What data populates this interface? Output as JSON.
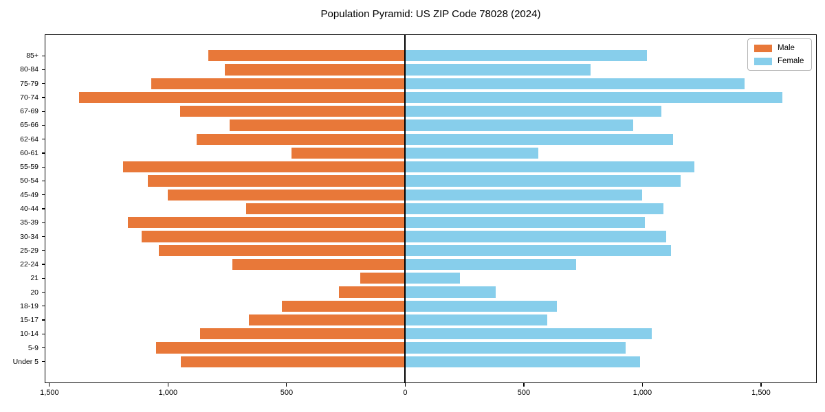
{
  "title": "Population Pyramid: US ZIP Code 78028 (2024)",
  "legend": {
    "male_label": "Male",
    "female_label": "Female"
  },
  "colors": {
    "male": "#e87839",
    "female": "#87ceeb",
    "axis": "#000000",
    "legend_border": "#b3b3b3",
    "background": "#ffffff"
  },
  "chart_data": {
    "type": "bar",
    "subtype": "population-pyramid",
    "title": "Population Pyramid: US ZIP Code 78028 (2024)",
    "xlabel": "",
    "ylabel": "",
    "grid": false,
    "legend_position": "upper right",
    "categories": [
      "85+",
      "80-84",
      "75-79",
      "70-74",
      "67-69",
      "65-66",
      "62-64",
      "60-61",
      "55-59",
      "50-54",
      "45-49",
      "40-44",
      "35-39",
      "30-34",
      "25-29",
      "22-24",
      "21",
      "20",
      "18-19",
      "15-17",
      "10-14",
      "5-9",
      "Under 5"
    ],
    "series": [
      {
        "name": "Male",
        "side": "left",
        "color": "#e87839",
        "values": [
          830,
          760,
          1070,
          1375,
          950,
          740,
          880,
          480,
          1190,
          1085,
          1000,
          670,
          1170,
          1110,
          1040,
          730,
          190,
          280,
          520,
          660,
          865,
          1050,
          945
        ]
      },
      {
        "name": "Female",
        "side": "right",
        "color": "#87ceeb",
        "values": [
          1020,
          780,
          1430,
          1590,
          1080,
          960,
          1130,
          560,
          1220,
          1160,
          1000,
          1090,
          1010,
          1100,
          1120,
          720,
          230,
          380,
          640,
          600,
          1040,
          930,
          990
        ]
      }
    ],
    "xlim": [
      -1520,
      1735
    ],
    "x_ticks": [
      -1500,
      -1000,
      -500,
      0,
      500,
      1000,
      1500
    ],
    "x_tick_labels": [
      "1,500",
      "1,000",
      "500",
      "0",
      "500",
      "1,000",
      "1,500"
    ]
  }
}
